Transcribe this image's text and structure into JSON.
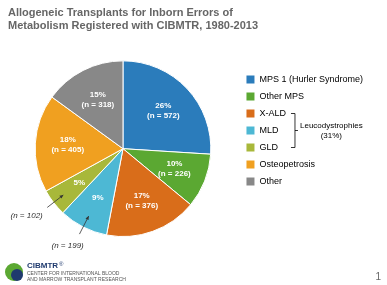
{
  "chart_data": {
    "type": "pie",
    "title": [
      "Allogeneic Transplants for Inborn Errors of",
      "Metabolism Registered with CIBMTR, 1980-2013"
    ],
    "categories": [
      "MPS 1 (Hurler Syndrome)",
      "Other MPS",
      "X-ALD",
      "MLD",
      "GLD",
      "Osteopetrosis",
      "Other"
    ],
    "values": [
      26,
      10,
      17,
      9,
      5,
      18,
      15
    ],
    "value_labels": [
      "26%",
      "10%",
      "17%",
      "9%",
      "5%",
      "18%",
      "15%"
    ],
    "count_labels": [
      "(n = 572)",
      "(n = 226)",
      "(n = 376)",
      "(n = 199)",
      "(n = 102)",
      "(n = 405)",
      "(n = 318)"
    ],
    "colors": [
      "#2B7CBB",
      "#5BA832",
      "#D96D1A",
      "#4DB8D4",
      "#A8B83A",
      "#F0A020",
      "#888888"
    ],
    "data_labels": true,
    "legend": "right",
    "annotations": [
      {
        "text": "Leucodystrophies\n(31%)",
        "categories": [
          "X-ALD",
          "MLD",
          "GLD"
        ]
      },
      {
        "text": "1"
      },
      {
        "text": "CIBMTR"
      },
      {
        "text": "®"
      },
      {
        "text": "CENTER FOR INTERNATIONAL BLOOD\nAND MARROW TRANSPLANT RESEARCH"
      }
    ]
  }
}
